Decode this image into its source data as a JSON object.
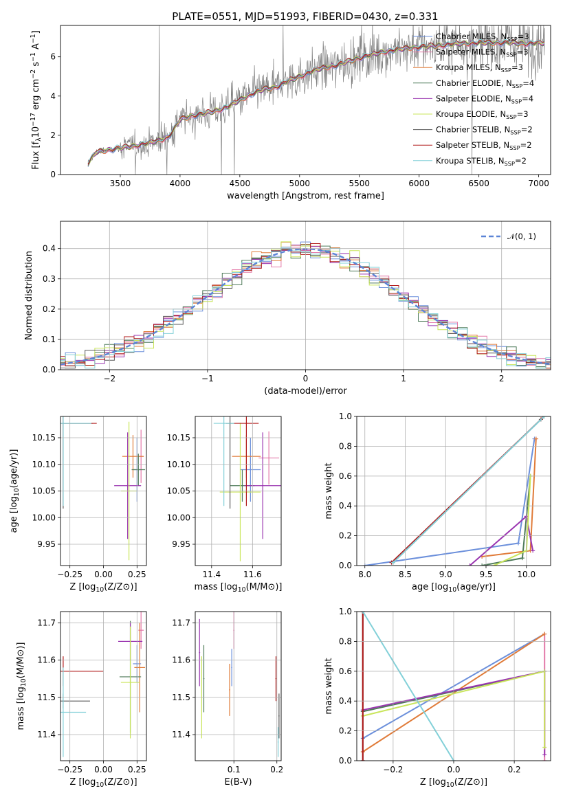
{
  "title": "PLATE=0551, MJD=51993, FIBERID=0430, z=0.331",
  "series_names": [
    "Chabrier MILES, N_{SSP}=3",
    "Salpeter MILES, N_{SSP}=3",
    "Kroupa MILES, N_{SSP}=3",
    "Chabrier ELODIE, N_{SSP}=4",
    "Salpeter ELODIE, N_{SSP}=4",
    "Kroupa ELODIE, N_{SSP}=3",
    "Chabrier STELIB, N_{SSP}=2",
    "Salpeter STELIB, N_{SSP}=2",
    "Kroupa STELIB, N_{SSP}=2"
  ],
  "series_colors": [
    "#6b8fdb",
    "#e378a8",
    "#e07b39",
    "#4f7b5a",
    "#9a35b0",
    "#c9e55a",
    "#5a5a5a",
    "#b01818",
    "#82d0d8"
  ],
  "chart_data": [
    {
      "id": "spectrum",
      "type": "line",
      "xlabel": "wavelength [Angstrom, rest frame]",
      "ylabel": "Flux [f_λ 10^{-17} erg cm^{-2} s^{-1} A^{-1}]",
      "xlim": [
        3000,
        7100
      ],
      "ylim": [
        0,
        7.6
      ],
      "xticks": [
        "3500",
        "4000",
        "4500",
        "5000",
        "5500",
        "6000",
        "6500",
        "7000"
      ],
      "yticks": [
        "0",
        "2",
        "4",
        "6"
      ],
      "grid": false,
      "legend": "top-right",
      "data_color": "#808080",
      "model_x": [
        3230,
        3300,
        3400,
        3500,
        3600,
        3700,
        3800,
        3900,
        3950,
        4000,
        4100,
        4200,
        4300,
        4400,
        4500,
        4600,
        4700,
        4800,
        4900,
        5000,
        5100,
        5200,
        5300,
        5400,
        5500,
        5600,
        5700,
        5800,
        5900,
        6000,
        6100,
        6200,
        6300,
        6400,
        6500,
        6600,
        6700,
        6800,
        6900,
        7000
      ],
      "model_y": [
        0.55,
        1.15,
        1.25,
        1.35,
        1.45,
        1.55,
        1.7,
        1.9,
        2.3,
        2.8,
        3.0,
        3.1,
        3.25,
        3.45,
        3.8,
        4.1,
        4.35,
        4.45,
        4.75,
        5.0,
        5.25,
        5.45,
        5.55,
        5.75,
        5.95,
        6.1,
        6.25,
        6.35,
        6.45,
        6.5,
        6.55,
        6.6,
        6.65,
        6.7,
        6.7,
        6.72,
        6.72,
        6.7,
        6.68,
        6.7
      ]
    },
    {
      "id": "residuals",
      "type": "histogram",
      "xlabel": "(data-model)/error",
      "ylabel": "Normed distribution",
      "xlim": [
        -2.5,
        2.5
      ],
      "ylim": [
        0,
        0.49
      ],
      "xticks": [
        "−2",
        "−1",
        "0",
        "1",
        "2"
      ],
      "yticks": [
        "0.0",
        "0.1",
        "0.2",
        "0.3",
        "0.4"
      ],
      "grid": true,
      "legend": "top-right",
      "reference_label": "𝒩(0, 1)",
      "reference_color": "#5b84d6",
      "bin_width": 0.1
    },
    {
      "id": "age-vs-Z",
      "type": "scatter",
      "xlabel": "Z [log10(Z/Z⊙)]",
      "ylabel": "age  [log10(age/yr)]",
      "xlim": [
        -0.32,
        0.32
      ],
      "ylim": [
        9.91,
        10.19
      ],
      "xticks": [
        "−0.25",
        "0.00",
        "0.25"
      ],
      "yticks": [
        "9.95",
        "10.00",
        "10.05",
        "10.10",
        "10.15"
      ],
      "grid": true,
      "points": [
        {
          "x": 0.25,
          "y": 10.09,
          "xerr": 0.03,
          "yerr": 0.06
        },
        {
          "x": 0.28,
          "y": 10.115,
          "xerr": 0.02,
          "yerr": 0.05
        },
        {
          "x": 0.22,
          "y": 10.115,
          "xerr": 0.08,
          "yerr": 0.04
        },
        {
          "x": 0.26,
          "y": 10.09,
          "xerr": 0.05,
          "yerr": 0.03
        },
        {
          "x": 0.18,
          "y": 10.06,
          "xerr": 0.1,
          "yerr": 0.1
        },
        {
          "x": 0.19,
          "y": 10.05,
          "xerr": 0.06,
          "yerr": 0.13
        },
        {
          "x": -0.3,
          "y": 10.177,
          "xerr": 0.22,
          "yerr": 0.16
        },
        {
          "x": -0.3,
          "y": 10.177,
          "xerr": 0.25,
          "yerr": 0.155
        },
        {
          "x": -0.3,
          "y": 10.177,
          "xerr": 0.21,
          "yerr": 0.155
        }
      ]
    },
    {
      "id": "age-vs-mass",
      "type": "scatter",
      "xlabel": "mass [log10(M/M⊙)]",
      "ylabel": "",
      "xlim": [
        11.32,
        11.74
      ],
      "ylim": [
        9.91,
        10.19
      ],
      "xticks": [
        "11.4",
        "11.6"
      ],
      "yticks": [
        "9.95",
        "10.00",
        "10.05",
        "10.10",
        "10.15"
      ],
      "grid": true,
      "points": [
        {
          "x": 11.59,
          "y": 10.09,
          "xerr": 0.05,
          "yerr": 0.06
        },
        {
          "x": 11.68,
          "y": 10.112,
          "xerr": 0.05,
          "yerr": 0.05
        },
        {
          "x": 11.57,
          "y": 10.115,
          "xerr": 0.07,
          "yerr": 0.04
        },
        {
          "x": 11.55,
          "y": 10.06,
          "xerr": 0.06,
          "yerr": 0.03
        },
        {
          "x": 11.65,
          "y": 10.06,
          "xerr": 0.09,
          "yerr": 0.1
        },
        {
          "x": 11.54,
          "y": 10.048,
          "xerr": 0.1,
          "yerr": 0.13
        },
        {
          "x": 11.49,
          "y": 10.177,
          "xerr": 0.02,
          "yerr": 0.16
        },
        {
          "x": 11.57,
          "y": 10.177,
          "xerr": 0.06,
          "yerr": 0.155
        },
        {
          "x": 11.46,
          "y": 10.177,
          "xerr": 0.05,
          "yerr": 0.155
        }
      ]
    },
    {
      "id": "mass-weight-vs-age",
      "type": "line",
      "xlabel": "age  [log10(age/yr)]",
      "ylabel": "mass weight",
      "xlim": [
        7.9,
        10.3
      ],
      "ylim": [
        0,
        1.0
      ],
      "xticks": [
        "8.0",
        "8.5",
        "9.0",
        "9.5",
        "10.0"
      ],
      "yticks": [
        "0.0",
        "0.2",
        "0.4",
        "0.6",
        "0.8",
        "1.0"
      ],
      "grid": true,
      "series": [
        {
          "x": [
            8.0,
            9.9,
            10.1
          ],
          "y": [
            0.0,
            0.15,
            0.85
          ]
        },
        {
          "x": [
            10.12
          ],
          "y": [
            0.85
          ]
        },
        {
          "x": [
            9.45,
            10.05,
            10.12
          ],
          "y": [
            0.06,
            0.1,
            0.85
          ]
        },
        {
          "x": [
            9.45,
            9.95,
            10.05
          ],
          "y": [
            0.0,
            0.05,
            0.6
          ]
        },
        {
          "x": [
            9.3,
            10.0,
            10.08
          ],
          "y": [
            0.0,
            0.33,
            0.1
          ]
        },
        {
          "x": [
            9.6,
            10.0,
            10.05
          ],
          "y": [
            0.0,
            0.1,
            0.6
          ]
        },
        {
          "x": [
            8.35,
            10.18
          ],
          "y": [
            0.02,
            0.98
          ]
        },
        {
          "x": [
            8.33,
            10.2
          ],
          "y": [
            0.02,
            0.99
          ]
        },
        {
          "x": [
            8.35,
            10.22
          ],
          "y": [
            0.02,
            1.0
          ]
        }
      ]
    },
    {
      "id": "mass-vs-Z",
      "type": "scatter",
      "xlabel": "Z [log10(Z/Z⊙)]",
      "ylabel": "mass [log10(M/M⊙)]",
      "xlim": [
        -0.32,
        0.32
      ],
      "ylim": [
        11.33,
        11.73
      ],
      "xticks": [
        "−0.25",
        "0.00",
        "0.25"
      ],
      "yticks": [
        "11.4",
        "11.5",
        "11.6",
        "11.7"
      ],
      "grid": true,
      "points": [
        {
          "x": 0.25,
          "y": 11.59,
          "xerr": 0.03,
          "yerr": 0.05
        },
        {
          "x": 0.28,
          "y": 11.68,
          "xerr": 0.02,
          "yerr": 0.05
        },
        {
          "x": 0.27,
          "y": 11.58,
          "xerr": 0.04,
          "yerr": 0.12
        },
        {
          "x": 0.2,
          "y": 11.555,
          "xerr": 0.08,
          "yerr": 0.15
        },
        {
          "x": 0.2,
          "y": 11.65,
          "xerr": 0.09,
          "yerr": 0.05
        },
        {
          "x": 0.2,
          "y": 11.54,
          "xerr": 0.07,
          "yerr": 0.15
        },
        {
          "x": -0.3,
          "y": 11.49,
          "xerr": 0.2,
          "yerr": 0.02
        },
        {
          "x": -0.3,
          "y": 11.57,
          "xerr": 0.3,
          "yerr": 0.04
        },
        {
          "x": -0.3,
          "y": 11.46,
          "xerr": 0.17,
          "yerr": 0.12
        }
      ]
    },
    {
      "id": "mass-vs-ebv",
      "type": "scatter",
      "xlabel": "E(B-V)",
      "ylabel": "",
      "xlim": [
        0.01,
        0.21
      ],
      "ylim": [
        11.33,
        11.73
      ],
      "xticks": [
        "0.1",
        "0.2"
      ],
      "yticks": [
        "11.4",
        "11.5",
        "11.6",
        "11.7"
      ],
      "grid": true,
      "points": [
        {
          "x": 0.095,
          "y": 11.58,
          "yerr": 0.05
        },
        {
          "x": 0.1,
          "y": 11.68,
          "yerr": 0.05
        },
        {
          "x": 0.09,
          "y": 11.52,
          "yerr": 0.07
        },
        {
          "x": 0.03,
          "y": 11.55,
          "yerr": 0.09
        },
        {
          "x": 0.02,
          "y": 11.62,
          "yerr": 0.09
        },
        {
          "x": 0.025,
          "y": 11.5,
          "yerr": 0.11
        },
        {
          "x": 0.205,
          "y": 11.45,
          "yerr": 0.06
        },
        {
          "x": 0.198,
          "y": 11.55,
          "yerr": 0.06
        },
        {
          "x": 0.203,
          "y": 11.38,
          "yerr": 0.04
        }
      ]
    },
    {
      "id": "mass-weight-vs-Z",
      "type": "line",
      "xlabel": "Z [log10(Z/Z⊙)]",
      "ylabel": "mass weight",
      "xlim": [
        -0.32,
        0.32
      ],
      "ylim": [
        0,
        1.0
      ],
      "xticks": [
        "−0.2",
        "0.0",
        "0.2"
      ],
      "yticks": [
        "0.0",
        "0.2",
        "0.4",
        "0.6",
        "0.8",
        "1.0"
      ],
      "grid": true,
      "series": [
        {
          "x": [
            -0.3,
            0.3
          ],
          "y": [
            0.15,
            0.85
          ]
        },
        {
          "x": [
            0.3,
            0.3
          ],
          "y": [
            0.0,
            0.85
          ]
        },
        {
          "x": [
            -0.3,
            0.3
          ],
          "y": [
            0.06,
            0.85
          ]
        },
        {
          "x": [
            -0.3,
            0.3
          ],
          "y": [
            0.33,
            0.6
          ]
        },
        {
          "x": [
            -0.3,
            0.3,
            0.3
          ],
          "y": [
            0.34,
            0.6,
            0.04
          ]
        },
        {
          "x": [
            -0.3,
            0.3,
            0.3
          ],
          "y": [
            0.3,
            0.6,
            0.09
          ]
        },
        {
          "x": [
            -0.3,
            -0.3
          ],
          "y": [
            0.0,
            1.0
          ]
        },
        {
          "x": [
            -0.3,
            -0.3
          ],
          "y": [
            0.0,
            1.0
          ]
        },
        {
          "x": [
            -0.3,
            0.0
          ],
          "y": [
            1.0,
            0.0
          ]
        }
      ]
    }
  ]
}
